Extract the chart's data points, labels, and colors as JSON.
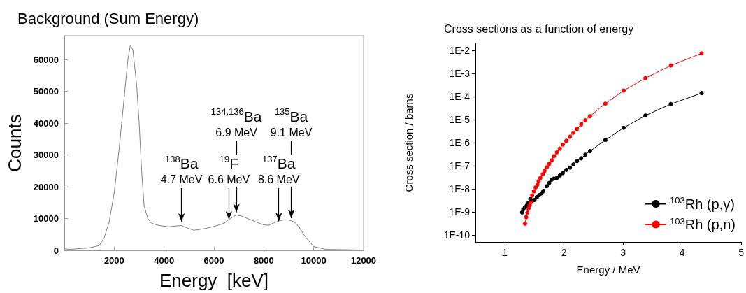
{
  "chart_data": [
    {
      "type": "line",
      "title": "Background (Sum Energy)",
      "xlabel": "Energy  [keV]",
      "ylabel": "Counts",
      "x": [
        0,
        200,
        1000,
        1400,
        1600,
        1800,
        2000,
        2200,
        2400,
        2550,
        2650,
        2750,
        2900,
        3000,
        3100,
        3200,
        3350,
        3500,
        3800,
        4200,
        4500,
        4700,
        4900,
        5200,
        5600,
        6000,
        6400,
        6700,
        6900,
        7100,
        7500,
        8000,
        8200,
        8500,
        8800,
        9000,
        9200,
        9400,
        9600,
        9800,
        10000,
        10500,
        12000
      ],
      "series": [
        {
          "color": "#808080",
          "values": [
            500,
            300,
            800,
            1500,
            4000,
            9000,
            18000,
            32000,
            48000,
            60000,
            64500,
            63000,
            52000,
            40000,
            25000,
            14000,
            10000,
            8500,
            7800,
            7400,
            7700,
            7800,
            7100,
            6300,
            6800,
            7500,
            8500,
            10200,
            11100,
            10800,
            9500,
            8000,
            7900,
            9000,
            9600,
            9500,
            9000,
            7500,
            5000,
            3000,
            1200,
            300,
            100
          ]
        }
      ],
      "xlim": [
        0,
        12000
      ],
      "xticks": [
        2000,
        4000,
        6000,
        8000,
        10000,
        12000
      ],
      "ylim": [
        0,
        67500
      ],
      "yticks": [
        0,
        10000,
        20000,
        30000,
        40000,
        50000,
        60000
      ],
      "marker": "none",
      "annotations": [
        {
          "text": "$^{138}$Ba\n4.7 MeV",
          "x": 4700,
          "y": 9000
        },
        {
          "text": "$^{19}$F\n6.6 MeV",
          "x": 6600,
          "y": 9700
        },
        {
          "text": "$^{134,136}$Ba\n6.9 MeV",
          "x": 6900,
          "y": 12000
        },
        {
          "text": "$^{137}$Ba\n8.6 MeV",
          "x": 8600,
          "y": 9200
        },
        {
          "text": "$^{135}$Ba\n9.1 MeV",
          "x": 9100,
          "y": 10100
        }
      ]
    },
    {
      "type": "line",
      "title": "Cross sections as a function of energy",
      "xlabel": "Energy / MeV",
      "ylabel": "Cross section / barns",
      "series": [
        {
          "name": "$^{103}$Rh (p,γ)",
          "color": "#000000",
          "x": [
            1.29,
            1.31,
            1.34,
            1.37,
            1.4,
            1.43,
            1.46,
            1.5,
            1.54,
            1.58,
            1.62,
            1.65,
            1.71,
            1.75,
            1.79,
            1.83,
            1.88,
            1.93,
            1.98,
            2.04,
            2.1,
            2.16,
            2.22,
            2.29,
            2.36,
            2.44,
            2.7,
            3.01,
            3.38,
            3.81,
            4.33
          ],
          "values": [
            9.5e-10,
            1.3e-09,
            1.6e-09,
            1.9e-09,
            2.5e-09,
            3.6e-09,
            3e-09,
            3.3e-09,
            4.3e-09,
            5.3e-09,
            6.4e-09,
            8.1e-09,
            1.3e-08,
            1.8e-08,
            2.5e-08,
            2.8e-08,
            3e-08,
            3.8e-08,
            4.8e-08,
            6.6e-08,
            8.3e-08,
            1.15e-07,
            1.6e-07,
            2.1e-07,
            3e-07,
            4.3e-07,
            1.3e-06,
            4.4e-06,
            1.5e-05,
            4.7e-05,
            0.00014
          ]
        },
        {
          "name": "$^{103}$Rh (p,n)",
          "color": "#ff0000",
          "x": [
            1.34,
            1.36,
            1.38,
            1.4,
            1.42,
            1.44,
            1.46,
            1.49,
            1.52,
            1.55,
            1.57,
            1.6,
            1.64,
            1.67,
            1.71,
            1.75,
            1.79,
            1.83,
            1.88,
            1.93,
            1.98,
            2.04,
            2.1,
            2.16,
            2.22,
            2.29,
            2.36,
            2.44,
            2.7,
            3.01,
            3.38,
            3.81,
            4.33
          ],
          "values": [
            3.1e-10,
            5.9e-10,
            9.3e-10,
            1.4e-09,
            1.9e-09,
            2.6e-09,
            5.1e-09,
            7.8e-09,
            1.15e-08,
            1.5e-08,
            2.15e-08,
            3e-08,
            4.3e-08,
            6e-08,
            8.5e-08,
            1.2e-07,
            1.7e-07,
            2.6e-07,
            3.8e-07,
            5.5e-07,
            8.3e-07,
            1.2e-06,
            1.8e-06,
            2.7e-06,
            4e-06,
            6.2e-06,
            9.3e-06,
            1.4e-05,
            4.9e-05,
            0.00018,
            0.00063,
            0.0022,
            0.0074
          ]
        }
      ],
      "xlim": [
        0.5,
        5
      ],
      "xticks": [
        1,
        2,
        3,
        4,
        5
      ],
      "log": "y",
      "ylim": [
        5e-11,
        0.02
      ],
      "yticks": [
        {
          "value": 1e-10,
          "label": "1E-10"
        },
        {
          "value": 1e-09,
          "label": "1E-9"
        },
        {
          "value": 1e-08,
          "label": "1E-8"
        },
        {
          "value": 1e-07,
          "label": "1E-7"
        },
        {
          "value": 1e-06,
          "label": "1E-6"
        },
        {
          "value": 1e-05,
          "label": "1E-5"
        },
        {
          "value": 0.0001,
          "label": "1E-4"
        },
        {
          "value": 0.001,
          "label": "1E-3"
        },
        {
          "value": 0.01,
          "label": "1E-2"
        }
      ],
      "marker": "circle",
      "legend": "bottom right"
    }
  ]
}
